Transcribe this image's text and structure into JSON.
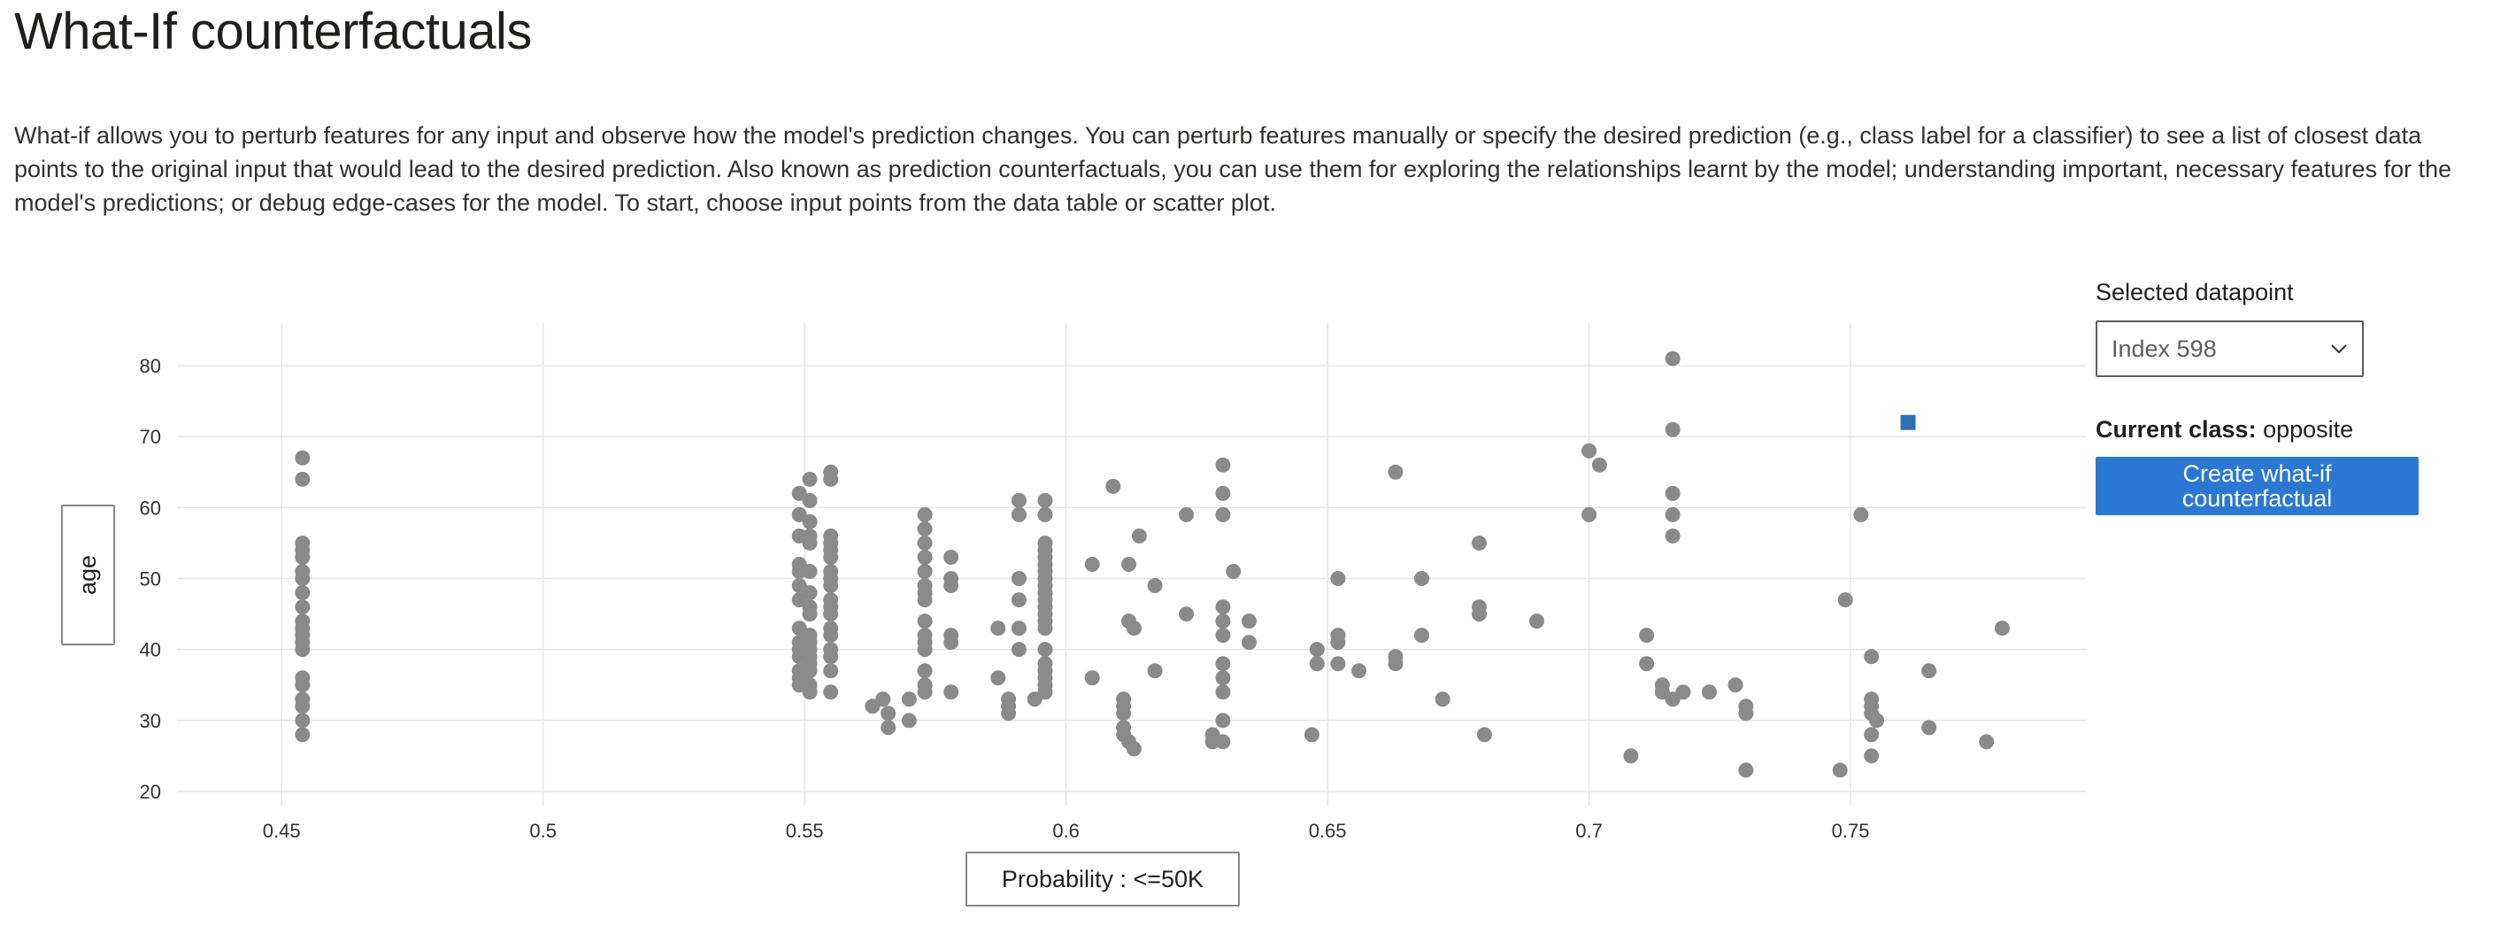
{
  "page": {
    "title": "What-If counterfactuals",
    "description": "What-if allows you to perturb features for any input and observe how the model's prediction changes. You can perturb features manually or specify the desired prediction (e.g., class label for a classifier) to see a list of closest data points to the original input that would lead to the desired prediction. Also known as prediction counterfactuals, you can use them for exploring the relationships learnt by the model; understanding important, necessary features for the model's predictions; or debug edge-cases for the model. To start, choose input points from the data table or scatter plot."
  },
  "axes": {
    "y_button_label": "age",
    "x_button_label": "Probability : <=50K"
  },
  "side_panel": {
    "selected_label": "Selected datapoint",
    "selected_value": "Index 598",
    "current_class_label": "Current class:",
    "current_class_value": "opposite",
    "create_button_label": "Create what-if counterfactual"
  },
  "colors": {
    "point": "#8a8a8a",
    "selected_point": "#2f6fb6",
    "grid": "#e5e5e5",
    "button": "#2b78d3"
  },
  "chart_data": {
    "type": "scatter",
    "xlabel": "Probability : <=50K",
    "ylabel": "age",
    "xlim": [
      0.43,
      0.795
    ],
    "ylim": [
      18,
      86
    ],
    "xticks": [
      0.45,
      0.5,
      0.55,
      0.6,
      0.65,
      0.7,
      0.75
    ],
    "xtick_labels": [
      "0.45",
      "0.5",
      "0.55",
      "0.6",
      "0.65",
      "0.7",
      "0.75"
    ],
    "yticks": [
      20,
      30,
      40,
      50,
      60,
      70,
      80
    ],
    "ytick_labels": [
      "20",
      "30",
      "40",
      "50",
      "60",
      "70",
      "80"
    ],
    "grid": true,
    "points": [
      [
        0.454,
        67
      ],
      [
        0.454,
        64
      ],
      [
        0.454,
        55
      ],
      [
        0.454,
        54
      ],
      [
        0.454,
        53
      ],
      [
        0.454,
        51
      ],
      [
        0.454,
        50
      ],
      [
        0.454,
        48
      ],
      [
        0.454,
        46
      ],
      [
        0.454,
        44
      ],
      [
        0.454,
        43
      ],
      [
        0.454,
        42
      ],
      [
        0.454,
        41
      ],
      [
        0.454,
        40
      ],
      [
        0.454,
        36
      ],
      [
        0.454,
        35
      ],
      [
        0.454,
        33
      ],
      [
        0.454,
        32
      ],
      [
        0.454,
        30
      ],
      [
        0.454,
        28
      ],
      [
        0.549,
        62
      ],
      [
        0.549,
        59
      ],
      [
        0.549,
        56
      ],
      [
        0.549,
        52
      ],
      [
        0.549,
        51
      ],
      [
        0.549,
        49
      ],
      [
        0.549,
        47
      ],
      [
        0.549,
        43
      ],
      [
        0.549,
        41
      ],
      [
        0.549,
        40
      ],
      [
        0.549,
        39
      ],
      [
        0.549,
        37
      ],
      [
        0.549,
        36
      ],
      [
        0.549,
        35
      ],
      [
        0.551,
        64
      ],
      [
        0.551,
        61
      ],
      [
        0.551,
        58
      ],
      [
        0.551,
        56
      ],
      [
        0.551,
        55
      ],
      [
        0.551,
        51
      ],
      [
        0.551,
        48
      ],
      [
        0.551,
        46
      ],
      [
        0.551,
        45
      ],
      [
        0.551,
        42
      ],
      [
        0.551,
        41
      ],
      [
        0.551,
        40
      ],
      [
        0.551,
        39
      ],
      [
        0.551,
        38
      ],
      [
        0.551,
        37
      ],
      [
        0.551,
        35
      ],
      [
        0.551,
        34
      ],
      [
        0.555,
        65
      ],
      [
        0.555,
        64
      ],
      [
        0.555,
        56
      ],
      [
        0.555,
        55
      ],
      [
        0.555,
        54
      ],
      [
        0.555,
        53
      ],
      [
        0.555,
        51
      ],
      [
        0.555,
        50
      ],
      [
        0.555,
        49
      ],
      [
        0.555,
        47
      ],
      [
        0.555,
        46
      ],
      [
        0.555,
        45
      ],
      [
        0.555,
        43
      ],
      [
        0.555,
        42
      ],
      [
        0.555,
        40
      ],
      [
        0.555,
        39
      ],
      [
        0.555,
        37
      ],
      [
        0.555,
        34
      ],
      [
        0.563,
        32
      ],
      [
        0.565,
        33
      ],
      [
        0.566,
        31
      ],
      [
        0.566,
        29
      ],
      [
        0.57,
        33
      ],
      [
        0.57,
        30
      ],
      [
        0.573,
        59
      ],
      [
        0.573,
        57
      ],
      [
        0.573,
        55
      ],
      [
        0.573,
        53
      ],
      [
        0.573,
        51
      ],
      [
        0.573,
        49
      ],
      [
        0.573,
        48
      ],
      [
        0.573,
        47
      ],
      [
        0.573,
        44
      ],
      [
        0.573,
        42
      ],
      [
        0.573,
        41
      ],
      [
        0.573,
        40
      ],
      [
        0.573,
        37
      ],
      [
        0.573,
        35
      ],
      [
        0.573,
        34
      ],
      [
        0.578,
        53
      ],
      [
        0.578,
        50
      ],
      [
        0.578,
        49
      ],
      [
        0.578,
        42
      ],
      [
        0.578,
        41
      ],
      [
        0.578,
        34
      ],
      [
        0.587,
        43
      ],
      [
        0.587,
        36
      ],
      [
        0.589,
        33
      ],
      [
        0.589,
        32
      ],
      [
        0.589,
        31
      ],
      [
        0.591,
        61
      ],
      [
        0.591,
        59
      ],
      [
        0.591,
        50
      ],
      [
        0.591,
        47
      ],
      [
        0.591,
        43
      ],
      [
        0.591,
        40
      ],
      [
        0.594,
        33
      ],
      [
        0.596,
        61
      ],
      [
        0.596,
        59
      ],
      [
        0.596,
        55
      ],
      [
        0.596,
        54
      ],
      [
        0.596,
        53
      ],
      [
        0.596,
        52
      ],
      [
        0.596,
        51
      ],
      [
        0.596,
        50
      ],
      [
        0.596,
        49
      ],
      [
        0.596,
        48
      ],
      [
        0.596,
        47
      ],
      [
        0.596,
        46
      ],
      [
        0.596,
        45
      ],
      [
        0.596,
        44
      ],
      [
        0.596,
        43
      ],
      [
        0.596,
        40
      ],
      [
        0.596,
        38
      ],
      [
        0.596,
        37
      ],
      [
        0.596,
        36
      ],
      [
        0.596,
        35
      ],
      [
        0.596,
        34
      ],
      [
        0.605,
        52
      ],
      [
        0.605,
        36
      ],
      [
        0.609,
        63
      ],
      [
        0.611,
        33
      ],
      [
        0.611,
        32
      ],
      [
        0.611,
        31
      ],
      [
        0.611,
        29
      ],
      [
        0.611,
        28
      ],
      [
        0.612,
        27
      ],
      [
        0.613,
        26
      ],
      [
        0.612,
        52
      ],
      [
        0.612,
        44
      ],
      [
        0.613,
        43
      ],
      [
        0.614,
        56
      ],
      [
        0.617,
        49
      ],
      [
        0.617,
        37
      ],
      [
        0.623,
        59
      ],
      [
        0.623,
        45
      ],
      [
        0.628,
        28
      ],
      [
        0.628,
        27
      ],
      [
        0.63,
        66
      ],
      [
        0.63,
        62
      ],
      [
        0.63,
        59
      ],
      [
        0.63,
        46
      ],
      [
        0.63,
        44
      ],
      [
        0.63,
        42
      ],
      [
        0.63,
        38
      ],
      [
        0.63,
        36
      ],
      [
        0.63,
        34
      ],
      [
        0.63,
        30
      ],
      [
        0.63,
        27
      ],
      [
        0.632,
        51
      ],
      [
        0.635,
        44
      ],
      [
        0.635,
        41
      ],
      [
        0.647,
        28
      ],
      [
        0.648,
        40
      ],
      [
        0.648,
        38
      ],
      [
        0.652,
        50
      ],
      [
        0.652,
        42
      ],
      [
        0.652,
        41
      ],
      [
        0.652,
        38
      ],
      [
        0.656,
        37
      ],
      [
        0.663,
        65
      ],
      [
        0.663,
        39
      ],
      [
        0.663,
        38
      ],
      [
        0.668,
        50
      ],
      [
        0.668,
        42
      ],
      [
        0.672,
        33
      ],
      [
        0.679,
        55
      ],
      [
        0.679,
        46
      ],
      [
        0.679,
        45
      ],
      [
        0.68,
        28
      ],
      [
        0.69,
        44
      ],
      [
        0.7,
        68
      ],
      [
        0.7,
        59
      ],
      [
        0.702,
        66
      ],
      [
        0.708,
        25
      ],
      [
        0.711,
        42
      ],
      [
        0.711,
        38
      ],
      [
        0.714,
        35
      ],
      [
        0.714,
        34
      ],
      [
        0.716,
        81
      ],
      [
        0.716,
        71
      ],
      [
        0.716,
        62
      ],
      [
        0.716,
        59
      ],
      [
        0.716,
        56
      ],
      [
        0.716,
        33
      ],
      [
        0.718,
        34
      ],
      [
        0.723,
        34
      ],
      [
        0.728,
        35
      ],
      [
        0.73,
        32
      ],
      [
        0.73,
        31
      ],
      [
        0.73,
        23
      ],
      [
        0.748,
        23
      ],
      [
        0.749,
        47
      ],
      [
        0.752,
        59
      ],
      [
        0.754,
        39
      ],
      [
        0.754,
        33
      ],
      [
        0.754,
        32
      ],
      [
        0.754,
        31
      ],
      [
        0.754,
        28
      ],
      [
        0.754,
        25
      ],
      [
        0.755,
        30
      ],
      [
        0.765,
        37
      ],
      [
        0.765,
        29
      ],
      [
        0.776,
        27
      ],
      [
        0.779,
        43
      ]
    ],
    "selected_point": [
      0.761,
      72
    ]
  }
}
